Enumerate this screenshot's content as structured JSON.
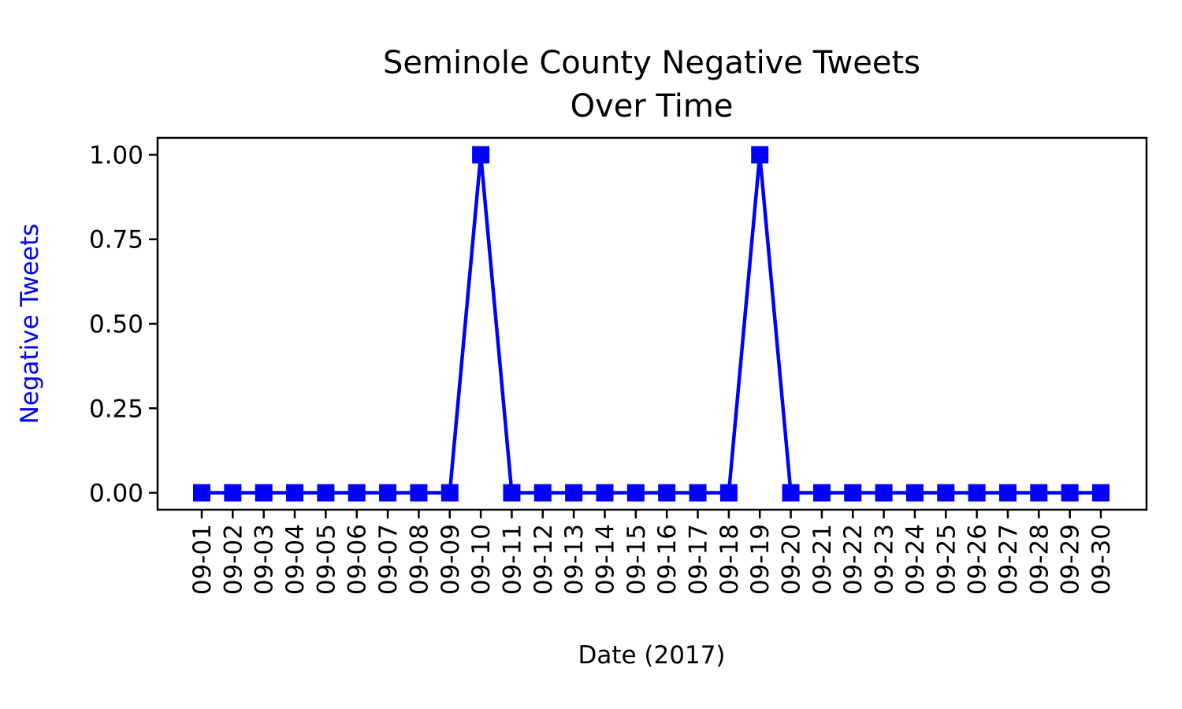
{
  "chart_data": {
    "type": "line",
    "title_lines": [
      "Seminole County Negative Tweets",
      "Over Time"
    ],
    "xlabel": "Date (2017)",
    "ylabel": "Negative Tweets",
    "ylim": [
      -0.05,
      1.05
    ],
    "y_ticks": [
      "0.00",
      "0.25",
      "0.50",
      "0.75",
      "1.00"
    ],
    "y_tick_values": [
      0,
      0.25,
      0.5,
      0.75,
      1.0
    ],
    "categories": [
      "09-01",
      "09-02",
      "09-03",
      "09-04",
      "09-05",
      "09-06",
      "09-07",
      "09-08",
      "09-09",
      "09-10",
      "09-11",
      "09-12",
      "09-13",
      "09-14",
      "09-15",
      "09-16",
      "09-17",
      "09-18",
      "09-19",
      "09-20",
      "09-21",
      "09-22",
      "09-23",
      "09-24",
      "09-25",
      "09-26",
      "09-27",
      "09-28",
      "09-29",
      "09-30"
    ],
    "series": [
      {
        "values": [
          0,
          0,
          0,
          0,
          0,
          0,
          0,
          0,
          0,
          1,
          0,
          0,
          0,
          0,
          0,
          0,
          0,
          0,
          1,
          0,
          0,
          0,
          0,
          0,
          0,
          0,
          0,
          0,
          0,
          0
        ],
        "color": "#0000ff",
        "marker": "square"
      }
    ],
    "ylabel_color": "#0000ff",
    "grid": false,
    "legend": "none"
  }
}
